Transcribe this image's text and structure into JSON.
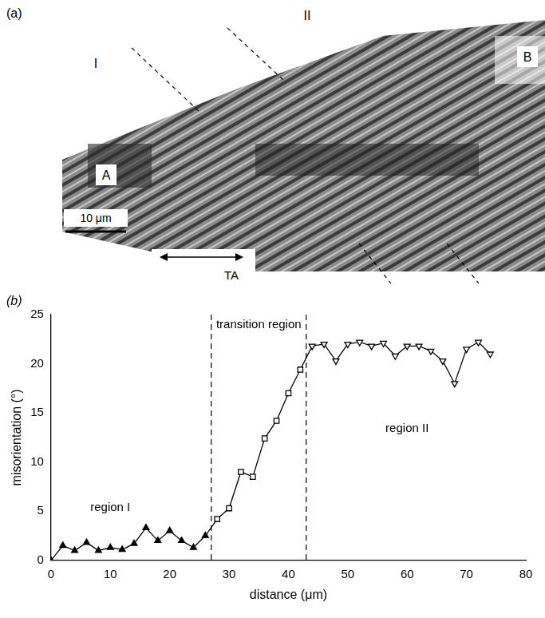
{
  "micrograph": {
    "panel": "(a)",
    "region_labels": [
      "I",
      "II"
    ],
    "point_labels": [
      "A",
      "B"
    ],
    "scale_bar": "10 μm",
    "axis_label": "TA"
  },
  "chart_data": {
    "type": "line",
    "panel": "(b)",
    "x_label": "distance (μm)",
    "y_label": "misorientation (°)",
    "xlim": [
      0,
      80
    ],
    "xticks": [
      0,
      10,
      20,
      30,
      40,
      50,
      60,
      70,
      80
    ],
    "ylim": [
      0,
      25
    ],
    "yticks": [
      0,
      5,
      10,
      15,
      20,
      25
    ],
    "grid": false,
    "series": [
      {
        "color": "#000000",
        "marker": "triangle",
        "x": [
          0,
          2,
          4,
          6,
          8,
          10,
          12,
          14,
          16,
          18,
          20,
          22,
          24,
          26
        ],
        "values": [
          0,
          1.5,
          1.0,
          1.8,
          1.0,
          1.3,
          1.1,
          1.7,
          3.3,
          2.0,
          3.0,
          2.0,
          1.3,
          2.5
        ]
      },
      {
        "color": "#000000",
        "marker": "square",
        "x": [
          28,
          30,
          32,
          34,
          36,
          38,
          40,
          42
        ],
        "values": [
          4.2,
          5.3,
          9.0,
          8.5,
          12.4,
          14.2,
          17.0,
          19.4
        ]
      },
      {
        "color": "#000000",
        "marker": "triangle_down",
        "x": [
          44,
          46,
          48,
          50,
          52,
          54,
          56,
          58,
          60,
          62,
          64,
          66,
          68,
          70,
          72,
          74
        ],
        "values": [
          21.8,
          22.0,
          20.3,
          22.0,
          22.2,
          21.8,
          22.1,
          20.8,
          21.8,
          21.8,
          21.3,
          20.3,
          18.0,
          21.5,
          22.2,
          21.0
        ]
      }
    ],
    "vlines": [
      27,
      43
    ],
    "annotations": [
      {
        "text": "region I",
        "x": 10,
        "y": 6
      },
      {
        "text": "transition region",
        "x": 35,
        "y": 24.6
      },
      {
        "text": "region II",
        "x": 60,
        "y": 14
      }
    ]
  }
}
